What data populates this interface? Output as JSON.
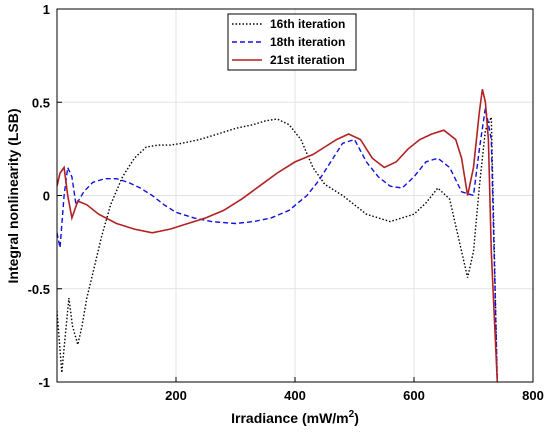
{
  "chart_data": {
    "type": "line",
    "xlabel": "Irradiance (mW/m",
    "xlabel_sup": "2",
    "xlabel_close": ")",
    "ylabel": "Integral nonlinearity (LSB)",
    "xlim": [
      0,
      800
    ],
    "ylim": [
      -1,
      1
    ],
    "xticks": [
      200,
      400,
      600,
      800
    ],
    "yticks": [
      -1,
      -0.5,
      0,
      0.5,
      1
    ],
    "xtick_labels": [
      "200",
      "400",
      "600",
      "800"
    ],
    "ytick_labels": [
      "-1",
      "-0.5",
      "0",
      "0.5",
      "1"
    ],
    "grid": true,
    "legend_position": "top-center",
    "series": [
      {
        "name": "16th iteration",
        "color": "#000000",
        "style": "dotted",
        "x": [
          0,
          8,
          14,
          20,
          26,
          35,
          42,
          50,
          60,
          75,
          90,
          110,
          130,
          150,
          170,
          190,
          210,
          240,
          270,
          300,
          330,
          350,
          370,
          390,
          410,
          430,
          450,
          480,
          500,
          520,
          540,
          560,
          580,
          600,
          620,
          640,
          660,
          680,
          690,
          700,
          710,
          720,
          730,
          740
        ],
        "y": [
          -0.62,
          -0.95,
          -0.75,
          -0.55,
          -0.7,
          -0.8,
          -0.7,
          -0.55,
          -0.42,
          -0.22,
          -0.05,
          0.1,
          0.2,
          0.26,
          0.27,
          0.27,
          0.28,
          0.3,
          0.33,
          0.36,
          0.38,
          0.4,
          0.41,
          0.38,
          0.3,
          0.15,
          0.06,
          0.0,
          -0.05,
          -0.1,
          -0.12,
          -0.14,
          -0.12,
          -0.1,
          -0.04,
          0.04,
          -0.02,
          -0.3,
          -0.44,
          -0.3,
          0.05,
          0.35,
          0.42,
          -1.0
        ]
      },
      {
        "name": "18th iteration",
        "color": "#1010e0",
        "style": "dashed",
        "x": [
          0,
          5,
          12,
          18,
          25,
          32,
          45,
          60,
          80,
          100,
          120,
          140,
          160,
          180,
          200,
          230,
          260,
          300,
          330,
          360,
          390,
          420,
          440,
          460,
          480,
          500,
          520,
          540,
          560,
          580,
          600,
          620,
          640,
          660,
          680,
          700,
          710,
          720,
          730,
          740
        ],
        "y": [
          -0.2,
          -0.28,
          0.0,
          0.15,
          0.1,
          -0.05,
          0.02,
          0.07,
          0.09,
          0.09,
          0.07,
          0.04,
          0.0,
          -0.05,
          -0.09,
          -0.12,
          -0.14,
          -0.15,
          -0.14,
          -0.12,
          -0.08,
          0.0,
          0.08,
          0.18,
          0.28,
          0.3,
          0.18,
          0.1,
          0.05,
          0.04,
          0.1,
          0.18,
          0.2,
          0.15,
          0.02,
          0.0,
          0.25,
          0.47,
          0.3,
          -1.0
        ]
      },
      {
        "name": "21st iteration",
        "color": "#b22222",
        "style": "solid",
        "x": [
          0,
          5,
          12,
          18,
          25,
          35,
          50,
          70,
          100,
          130,
          160,
          190,
          220,
          250,
          280,
          310,
          340,
          370,
          400,
          430,
          450,
          470,
          490,
          510,
          530,
          550,
          570,
          590,
          610,
          630,
          650,
          670,
          680,
          690,
          700,
          710,
          715,
          720,
          725,
          730,
          740
        ],
        "y": [
          0.05,
          0.12,
          0.15,
          0.0,
          -0.12,
          -0.03,
          -0.05,
          -0.1,
          -0.15,
          -0.18,
          -0.2,
          -0.18,
          -0.15,
          -0.12,
          -0.08,
          -0.02,
          0.05,
          0.12,
          0.18,
          0.22,
          0.26,
          0.3,
          0.33,
          0.3,
          0.2,
          0.15,
          0.18,
          0.25,
          0.3,
          0.33,
          0.35,
          0.3,
          0.2,
          0.0,
          0.15,
          0.45,
          0.57,
          0.5,
          0.3,
          -0.3,
          -1.0
        ]
      }
    ]
  }
}
